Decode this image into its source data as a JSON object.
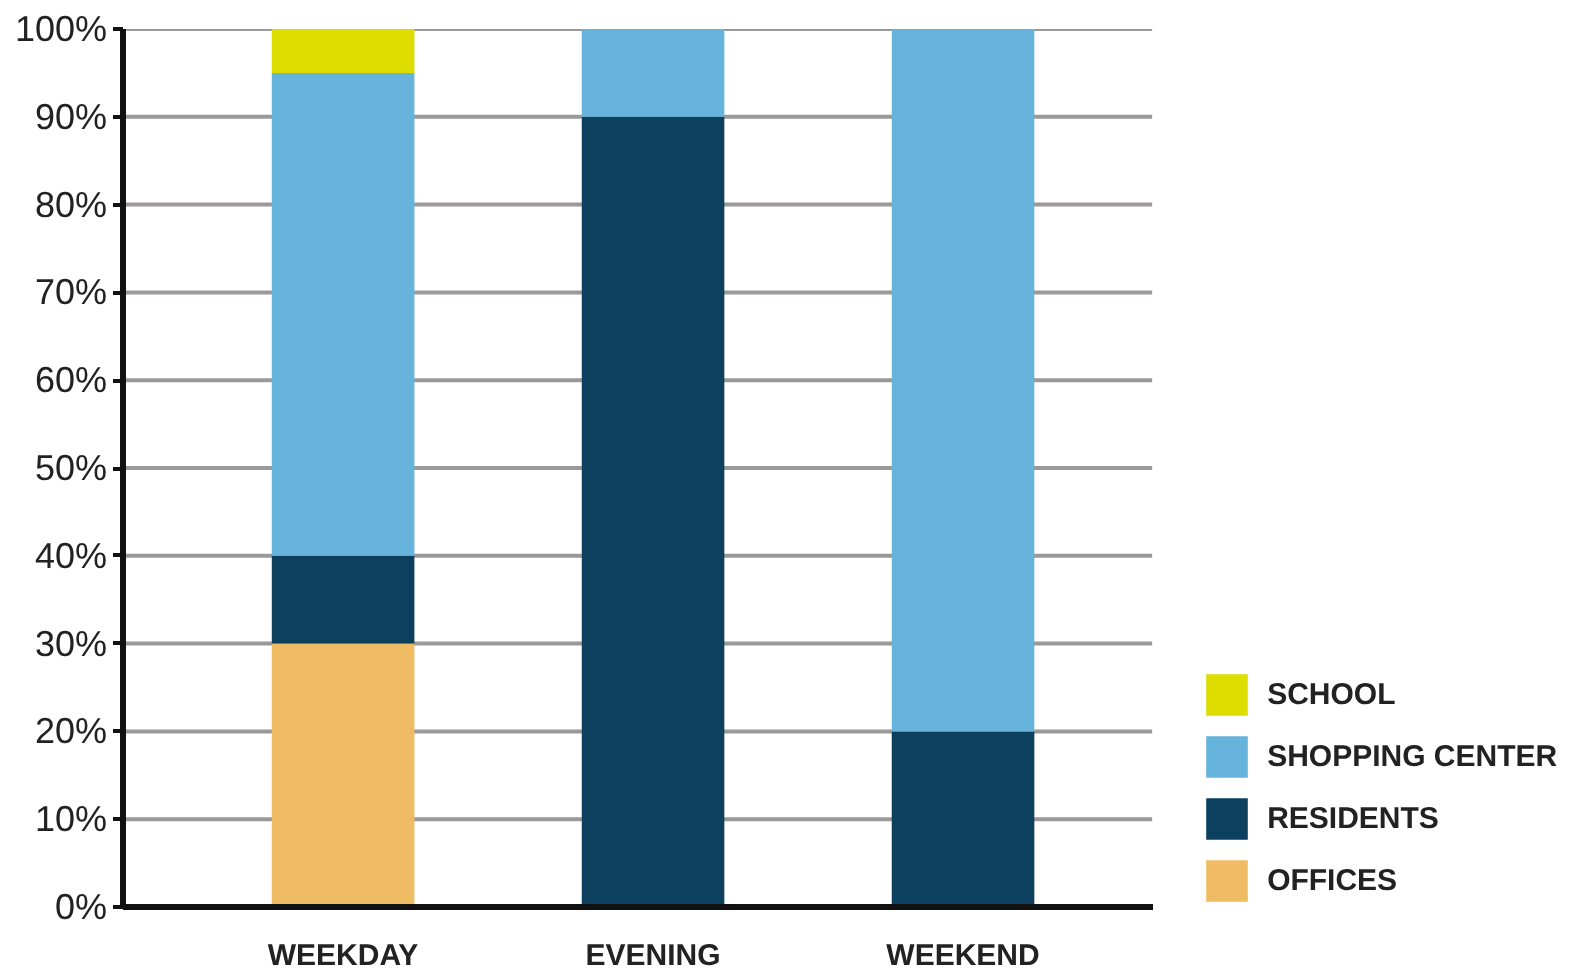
{
  "chart_data": {
    "type": "bar",
    "stacked": true,
    "categories": [
      "WEEKDAY",
      "EVENING",
      "WEEKEND"
    ],
    "series": [
      {
        "name": "OFFICES",
        "color": "#efbb63",
        "values": [
          30,
          0,
          0
        ]
      },
      {
        "name": "RESIDENTS",
        "color": "#0d405f",
        "values": [
          10,
          90,
          20
        ]
      },
      {
        "name": "SHOPPING CENTER",
        "color": "#66b3dc",
        "values": [
          55,
          10,
          80
        ]
      },
      {
        "name": "SCHOOL",
        "color": "#dddd00",
        "values": [
          5,
          0,
          0
        ]
      }
    ],
    "ylim": [
      0,
      100
    ],
    "yticks": [
      {
        "value": 0,
        "label": "0%"
      },
      {
        "value": 10,
        "label": "10%"
      },
      {
        "value": 20,
        "label": "20%"
      },
      {
        "value": 30,
        "label": "30%"
      },
      {
        "value": 40,
        "label": "40%"
      },
      {
        "value": 50,
        "label": "50%"
      },
      {
        "value": 60,
        "label": "60%"
      },
      {
        "value": 70,
        "label": "70%"
      },
      {
        "value": 80,
        "label": "80%"
      },
      {
        "value": 90,
        "label": "90%"
      },
      {
        "value": 100,
        "label": "100%"
      }
    ],
    "grid": "y",
    "legend": "bottom right"
  }
}
